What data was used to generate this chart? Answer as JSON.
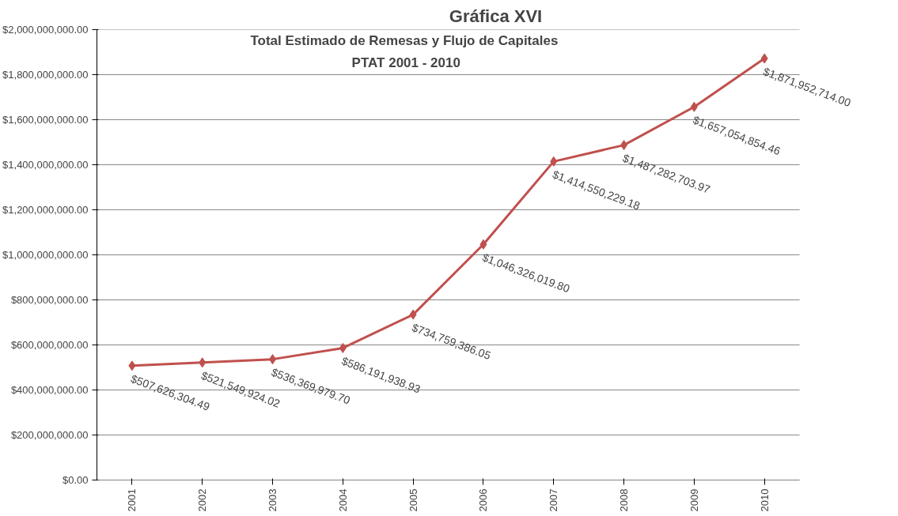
{
  "chart_data": {
    "type": "line",
    "title": "Gráfica XVI",
    "subtitle": "Total Estimado de Remesas y Flujo de  Capitales\nPTAT 2001 - 2010",
    "categories": [
      "2001",
      "2002",
      "2003",
      "2004",
      "2005",
      "2006",
      "2007",
      "2008",
      "2009",
      "2010"
    ],
    "series": [
      {
        "color": "#c0504d",
        "values": [
          507626304.49,
          521549924.02,
          536369979.7,
          586191938.93,
          734759386.05,
          1046326019.8,
          1414550229.18,
          1487282703.97,
          1657054854.46,
          1871952714.0
        ]
      }
    ],
    "ylim": [
      0,
      2000000000
    ],
    "yticks": [
      {
        "value": 0,
        "label": "$0.00"
      },
      {
        "value": 200000000,
        "label": "$200,000,000.00"
      },
      {
        "value": 400000000,
        "label": "$400,000,000.00"
      },
      {
        "value": 600000000,
        "label": "$600,000,000.00"
      },
      {
        "value": 800000000,
        "label": "$800,000,000.00"
      },
      {
        "value": 1000000000,
        "label": "$1,000,000,000.00"
      },
      {
        "value": 1200000000,
        "label": "$1,200,000,000.00"
      },
      {
        "value": 1400000000,
        "label": "$1,400,000,000.00"
      },
      {
        "value": 1600000000,
        "label": "$1,600,000,000.00"
      },
      {
        "value": 1800000000,
        "label": "$1,800,000,000.00"
      },
      {
        "value": 2000000000,
        "label": "$2,000,000,000.00"
      }
    ],
    "value_labels": [
      "$507,626,304.49",
      "$521,549,924.02",
      "$536,369,979.70",
      "$586,191,938.93",
      "$734,759,386.05",
      "$1,046,326,019.80",
      "$1,414,550,229.18",
      "$1,487,282,703.97",
      "$1,657,054,854.46",
      "$1,871,952,714.00"
    ],
    "grid": "y",
    "marker": "diamond",
    "line_style": "solid"
  }
}
